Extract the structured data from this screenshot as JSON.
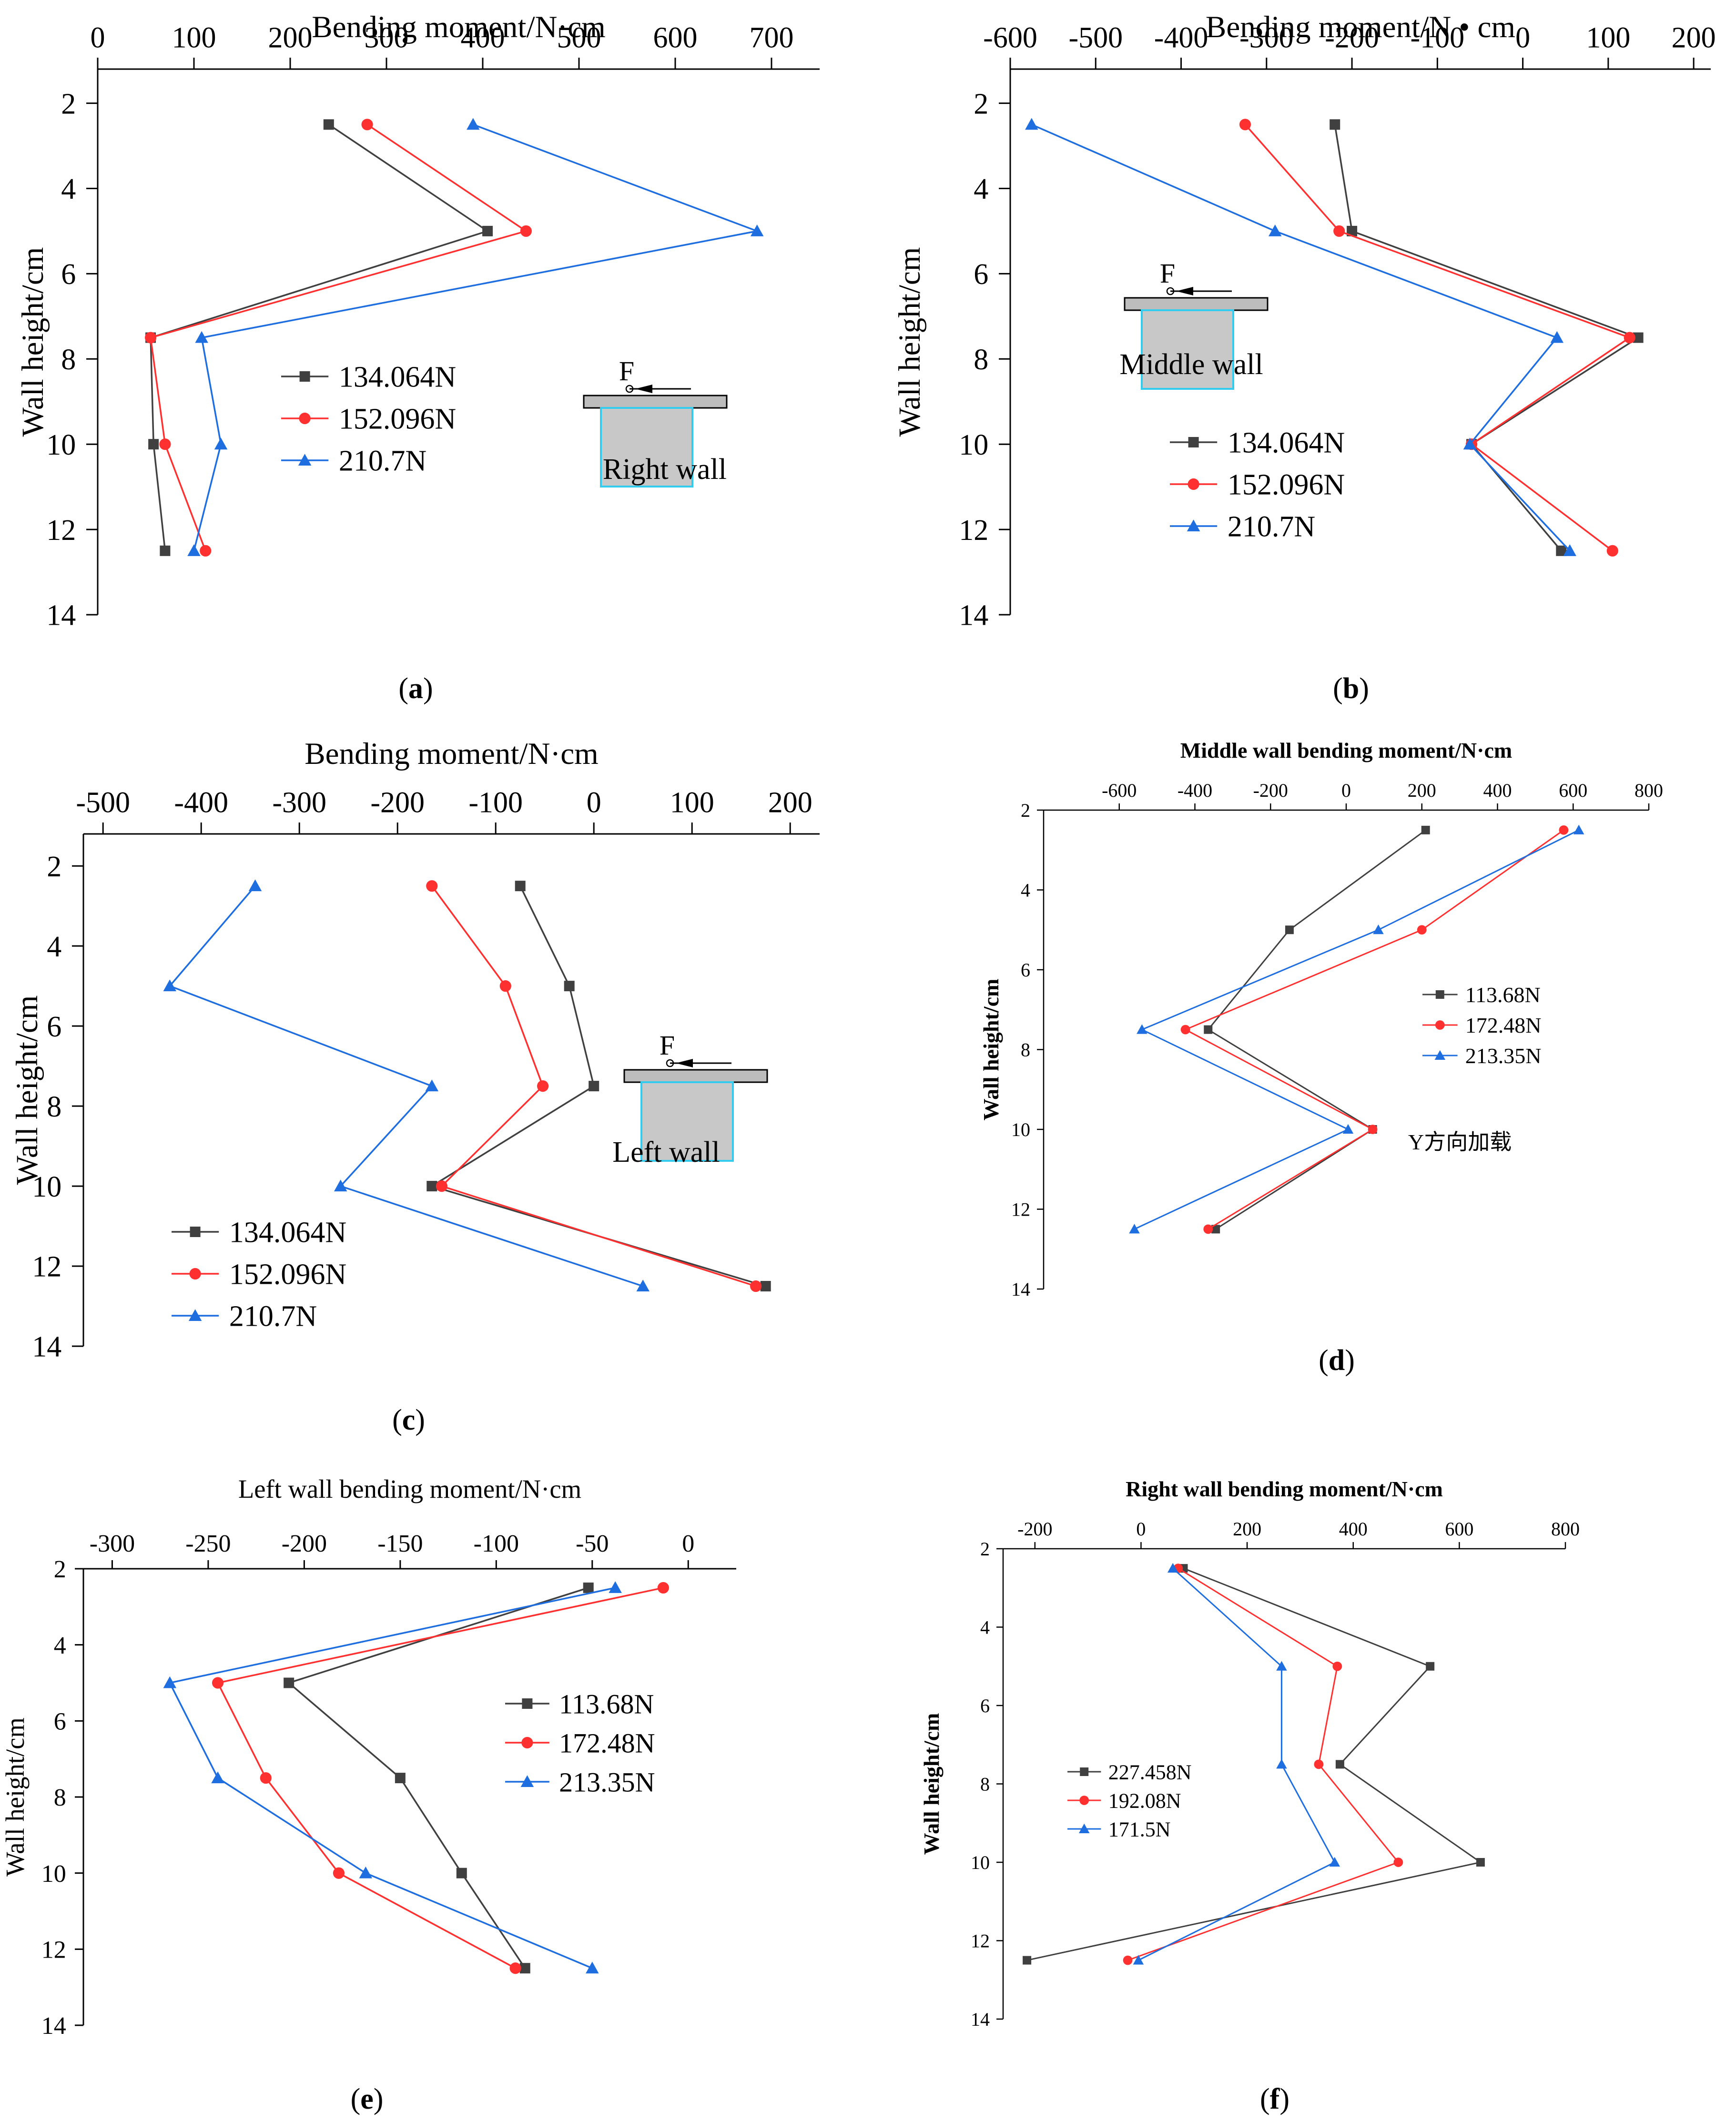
{
  "chart_data": [
    {
      "id": "a",
      "panel_label": "a",
      "type": "line",
      "title": "",
      "xlabel": "Bending moment/N·cm",
      "ylabel": "Wall height/cm",
      "xlim": [
        0,
        750
      ],
      "ylim": [
        14,
        1.2
      ],
      "xticks": [
        0,
        100,
        200,
        300,
        400,
        500,
        600,
        700
      ],
      "yticks": [
        2,
        4,
        6,
        8,
        10,
        12,
        14
      ],
      "x_axis_position": "top",
      "legend_position": "middle-left",
      "inset": {
        "F_label": "F",
        "wall_label": "Right wall"
      },
      "series": [
        {
          "name": "134.064N",
          "color": "#404040",
          "marker": "square",
          "x": [
            240,
            405,
            55,
            58,
            70
          ],
          "y": [
            2.5,
            5,
            7.5,
            10,
            12.5
          ]
        },
        {
          "name": "152.096N",
          "color": "#ff3030",
          "marker": "circle",
          "x": [
            280,
            445,
            55,
            70,
            112
          ],
          "y": [
            2.5,
            5,
            7.5,
            10,
            12.5
          ]
        },
        {
          "name": "210.7N",
          "color": "#1e6ee0",
          "marker": "triangle",
          "x": [
            390,
            685,
            108,
            128,
            100
          ],
          "y": [
            2.5,
            5,
            7.5,
            10,
            12.5
          ]
        }
      ]
    },
    {
      "id": "b",
      "panel_label": "b",
      "type": "line",
      "title": "",
      "xlabel": "Bending moment/N • cm",
      "ylabel": "Wall height/cm",
      "xlim": [
        -600,
        220
      ],
      "ylim": [
        14,
        1.2
      ],
      "xticks": [
        -600,
        -500,
        -400,
        -300,
        -200,
        -100,
        0,
        100,
        200
      ],
      "yticks": [
        2,
        4,
        6,
        8,
        10,
        12,
        14
      ],
      "x_axis_position": "top",
      "legend_position": "bottom-left",
      "inset": {
        "F_label": "F",
        "wall_label": "Middle wall"
      },
      "series": [
        {
          "name": "134.064N",
          "color": "#404040",
          "marker": "square",
          "x": [
            -220,
            -200,
            135,
            -60,
            45
          ],
          "y": [
            2.5,
            5,
            7.5,
            10,
            12.5
          ]
        },
        {
          "name": "152.096N",
          "color": "#ff3030",
          "marker": "circle",
          "x": [
            -325,
            -215,
            125,
            -60,
            105
          ],
          "y": [
            2.5,
            5,
            7.5,
            10,
            12.5
          ]
        },
        {
          "name": "210.7N",
          "color": "#1e6ee0",
          "marker": "triangle",
          "x": [
            -575,
            -290,
            40,
            -62,
            55
          ],
          "y": [
            2.5,
            5,
            7.5,
            10,
            12.5
          ]
        }
      ]
    },
    {
      "id": "c",
      "panel_label": "c",
      "type": "line",
      "title": "",
      "xlabel": "Bending moment/N·cm",
      "ylabel": "Wall height/cm",
      "xlim": [
        -520,
        230
      ],
      "ylim": [
        14,
        1.2
      ],
      "xticks": [
        -500,
        -400,
        -300,
        -200,
        -100,
        0,
        100,
        200
      ],
      "yticks": [
        2,
        4,
        6,
        8,
        10,
        12,
        14
      ],
      "x_axis_position": "top",
      "legend_position": "bottom-left",
      "inset": {
        "F_label": "F",
        "wall_label": "Left wall"
      },
      "series": [
        {
          "name": "134.064N",
          "color": "#404040",
          "marker": "square",
          "x": [
            -75,
            -25,
            0,
            -165,
            175
          ],
          "y": [
            2.5,
            5,
            7.5,
            10,
            12.5
          ]
        },
        {
          "name": "152.096N",
          "color": "#ff3030",
          "marker": "circle",
          "x": [
            -165,
            -90,
            -52,
            -155,
            165
          ],
          "y": [
            2.5,
            5,
            7.5,
            10,
            12.5
          ]
        },
        {
          "name": "210.7N",
          "color": "#1e6ee0",
          "marker": "triangle",
          "x": [
            -345,
            -432,
            -165,
            -258,
            50
          ],
          "y": [
            2.5,
            5,
            7.5,
            10,
            12.5
          ]
        }
      ]
    },
    {
      "id": "d",
      "panel_label": "d",
      "type": "line",
      "title": "",
      "xlabel": "Middle wall bending moment/N·cm",
      "ylabel": "Wall height/cm",
      "xlim": [
        -800,
        800
      ],
      "ylim": [
        14,
        2
      ],
      "xticks": [
        -600,
        -400,
        -200,
        0,
        200,
        400,
        600,
        800
      ],
      "yticks": [
        2,
        4,
        6,
        8,
        10,
        12,
        14
      ],
      "x_axis_position": "top",
      "legend_position": "middle-right",
      "annotation": "Y方向加载",
      "series": [
        {
          "name": "113.68N",
          "color": "#404040",
          "marker": "square",
          "x": [
            210,
            -150,
            -365,
            70,
            -345
          ],
          "y": [
            2.5,
            5,
            7.5,
            10,
            12.5
          ]
        },
        {
          "name": "172.48N",
          "color": "#ff3030",
          "marker": "circle",
          "x": [
            575,
            200,
            -425,
            70,
            -365
          ],
          "y": [
            2.5,
            5,
            7.5,
            10,
            12.5
          ]
        },
        {
          "name": "213.35N",
          "color": "#1e6ee0",
          "marker": "triangle",
          "x": [
            615,
            85,
            -540,
            5,
            -560
          ],
          "y": [
            2.5,
            5,
            7.5,
            10,
            12.5
          ]
        }
      ]
    },
    {
      "id": "e",
      "panel_label": "e",
      "type": "line",
      "title": "",
      "xlabel": "Left wall bending moment/N·cm",
      "ylabel": "Wall height/cm",
      "xlim": [
        -315,
        25
      ],
      "ylim": [
        14,
        2
      ],
      "xticks": [
        -300,
        -250,
        -200,
        -150,
        -100,
        -50,
        0
      ],
      "yticks": [
        2,
        4,
        6,
        8,
        10,
        12,
        14
      ],
      "x_axis_position": "top",
      "legend_position": "middle-right",
      "series": [
        {
          "name": "113.68N",
          "color": "#404040",
          "marker": "square",
          "x": [
            -52,
            -208,
            -150,
            -118,
            -85
          ],
          "y": [
            2.5,
            5,
            7.5,
            10,
            12.5
          ]
        },
        {
          "name": "172.48N",
          "color": "#ff3030",
          "marker": "circle",
          "x": [
            -13,
            -245,
            -220,
            -182,
            -90
          ],
          "y": [
            2.5,
            5,
            7.5,
            10,
            12.5
          ]
        },
        {
          "name": "213.35N",
          "color": "#1e6ee0",
          "marker": "triangle",
          "x": [
            -38,
            -270,
            -245,
            -168,
            -50
          ],
          "y": [
            2.5,
            5,
            7.5,
            10,
            12.5
          ]
        }
      ]
    },
    {
      "id": "f",
      "panel_label": "f",
      "type": "line",
      "title": "",
      "xlabel": "Right wall bending moment/N·cm",
      "ylabel": "Wall height/cm",
      "xlim": [
        -260,
        800
      ],
      "ylim": [
        14,
        2
      ],
      "xticks": [
        -200,
        0,
        200,
        400,
        600,
        800
      ],
      "yticks": [
        2,
        4,
        6,
        8,
        10,
        12,
        14
      ],
      "x_axis_position": "top",
      "legend_position": "middle-left",
      "series": [
        {
          "name": "227.458N",
          "color": "#404040",
          "marker": "square",
          "x": [
            80,
            545,
            375,
            640,
            -215
          ],
          "y": [
            2.5,
            5,
            7.5,
            10,
            12.5
          ]
        },
        {
          "name": "192.08N",
          "color": "#ff3030",
          "marker": "circle",
          "x": [
            70,
            370,
            335,
            485,
            -25
          ],
          "y": [
            2.5,
            5,
            7.5,
            10,
            12.5
          ]
        },
        {
          "name": "171.5N",
          "color": "#1e6ee0",
          "marker": "triangle",
          "x": [
            60,
            265,
            265,
            365,
            -5
          ],
          "y": [
            2.5,
            5,
            7.5,
            10,
            12.5
          ]
        }
      ]
    }
  ]
}
